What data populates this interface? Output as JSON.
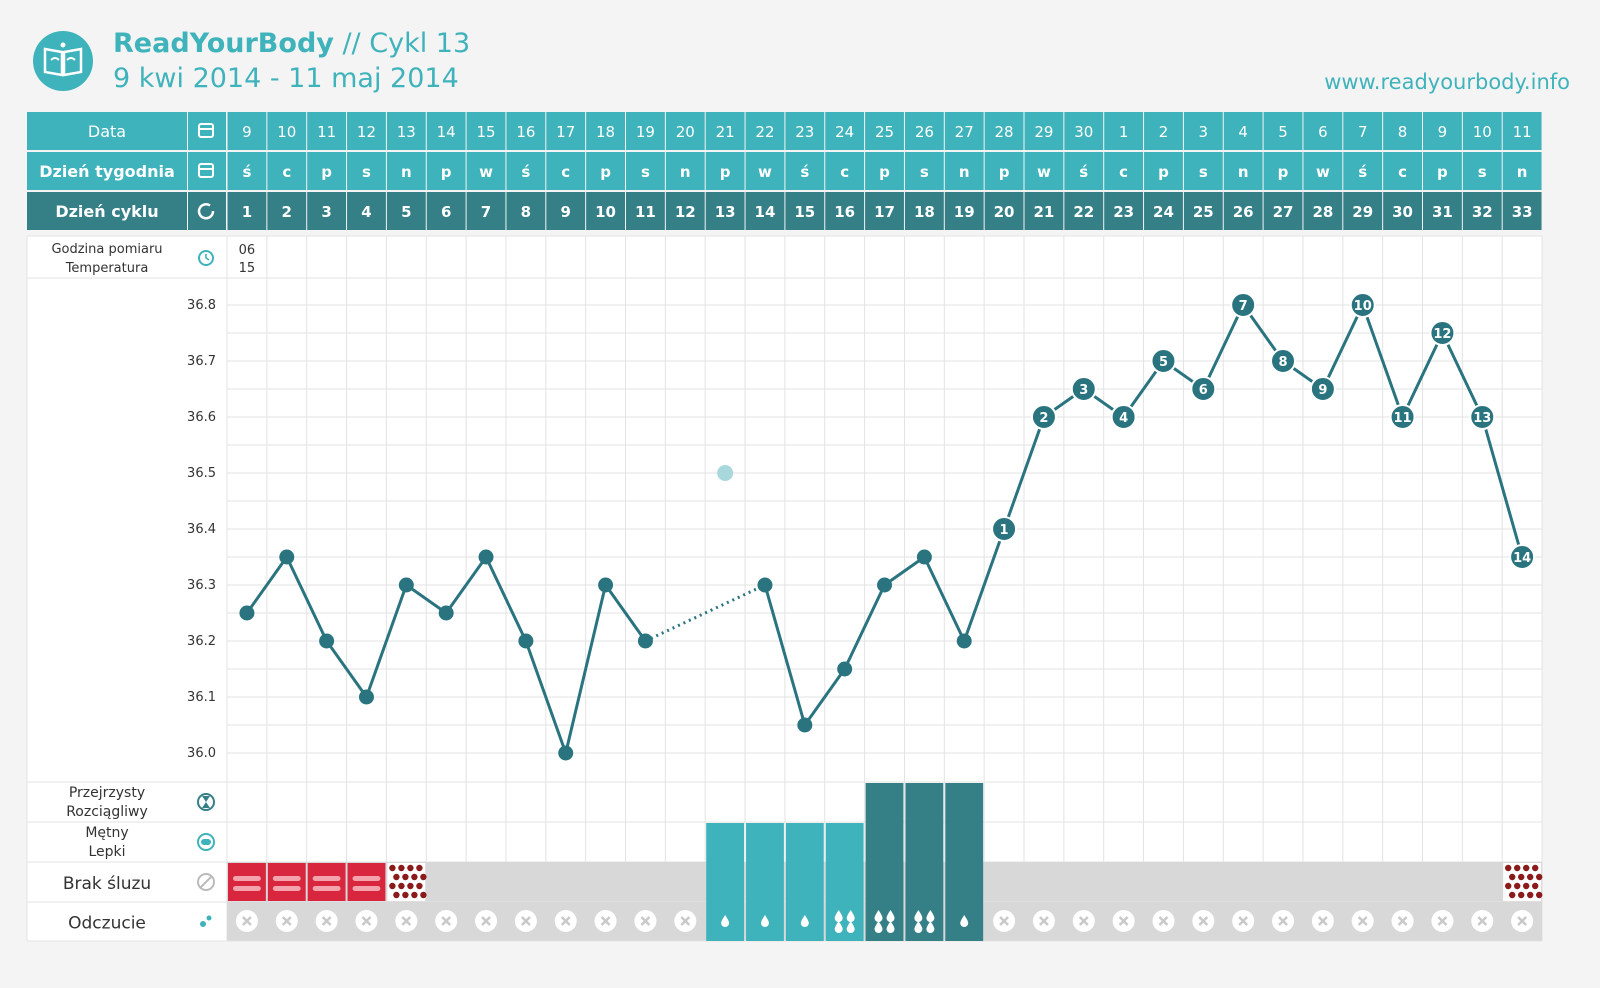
{
  "header": {
    "brand": "ReadYourBody",
    "cycle": " // Cykl 13",
    "dates": "9 kwi 2014 - 11 maj 2014",
    "url": "www.readyourbody.info"
  },
  "colors": {
    "teal": "#3fb3bb",
    "dark_teal": "#357f87",
    "line": "#2a7480",
    "red": "#d7263d",
    "dark_red": "#8b1a1a",
    "grid": "#e3e3e3",
    "no_mucus_bg": "#d8d8d8"
  },
  "rows": {
    "date_label": "Data",
    "weekday_label": "Dzień tygodnia",
    "cycle_day_label": "Dzień cyklu",
    "time_label_1": "Godzina pomiaru",
    "time_label_2": "Temperatura",
    "time_value_1": "06",
    "time_value_2": "15",
    "clear_label_1": "Przejrzysty",
    "clear_label_2": "Rozciągliwy",
    "cloudy_label_1": "Mętny",
    "cloudy_label_2": "Lepki",
    "none_label": "Brak śluzu",
    "feeling_label": "Odczucie"
  },
  "chart_data": {
    "type": "line",
    "dates": [
      "9",
      "10",
      "11",
      "12",
      "13",
      "14",
      "15",
      "16",
      "17",
      "18",
      "19",
      "20",
      "21",
      "22",
      "23",
      "24",
      "25",
      "26",
      "27",
      "28",
      "29",
      "30",
      "1",
      "2",
      "3",
      "4",
      "5",
      "6",
      "7",
      "8",
      "9",
      "10",
      "11"
    ],
    "weekdays": [
      "ś",
      "c",
      "p",
      "s",
      "n",
      "p",
      "w",
      "ś",
      "c",
      "p",
      "s",
      "n",
      "p",
      "w",
      "ś",
      "c",
      "p",
      "s",
      "n",
      "p",
      "w",
      "ś",
      "c",
      "p",
      "s",
      "n",
      "p",
      "w",
      "ś",
      "c",
      "p",
      "s",
      "n"
    ],
    "cycle_days": [
      "1",
      "2",
      "3",
      "4",
      "5",
      "6",
      "7",
      "8",
      "9",
      "10",
      "11",
      "12",
      "13",
      "14",
      "15",
      "16",
      "17",
      "18",
      "19",
      "20",
      "21",
      "22",
      "23",
      "24",
      "25",
      "26",
      "27",
      "28",
      "29",
      "30",
      "31",
      "32",
      "33"
    ],
    "temperatures": [
      36.25,
      36.35,
      36.2,
      36.1,
      36.3,
      36.25,
      36.35,
      36.2,
      36.0,
      36.3,
      36.2,
      null,
      null,
      36.3,
      36.05,
      36.15,
      36.3,
      36.35,
      36.2,
      36.4,
      36.6,
      36.65,
      36.6,
      36.7,
      36.65,
      36.8,
      36.7,
      36.65,
      36.8,
      36.6,
      36.75,
      36.6,
      36.35
    ],
    "excluded_point": {
      "cycle_day": 13,
      "temperature": 36.5
    },
    "dotted_gap": [
      11,
      14
    ],
    "point_labels": {
      "20": "1",
      "21": "2",
      "22": "3",
      "23": "4",
      "24": "5",
      "25": "6",
      "26": "7",
      "27": "8",
      "28": "9",
      "29": "10",
      "30": "11",
      "31": "12",
      "32": "13",
      "33": "14"
    },
    "y_ticks": [
      "36.8",
      "36.7",
      "36.6",
      "36.5",
      "36.4",
      "36.3",
      "36.2",
      "36.1",
      "36.0"
    ],
    "ylim": [
      36.0,
      36.8
    ],
    "mucus": [
      "none-red",
      "none-red",
      "none-red",
      "none-red",
      "none-dots",
      "none",
      "none",
      "none",
      "none",
      "none",
      "none",
      "none",
      "cloudy",
      "cloudy",
      "cloudy",
      "cloudy",
      "clear",
      "clear",
      "clear",
      "none",
      "none",
      "none",
      "none",
      "none",
      "none",
      "none",
      "none",
      "none",
      "none",
      "none",
      "none",
      "none",
      "none-dots"
    ],
    "feeling": [
      "x",
      "x",
      "x",
      "x",
      "x",
      "x",
      "x",
      "x",
      "x",
      "x",
      "x",
      "x",
      "drop1",
      "drop1",
      "drop1",
      "drop3",
      "drop3",
      "drop3",
      "drop1",
      "x",
      "x",
      "x",
      "x",
      "x",
      "x",
      "x",
      "x",
      "x",
      "x",
      "x",
      "x",
      "x",
      "x"
    ]
  }
}
